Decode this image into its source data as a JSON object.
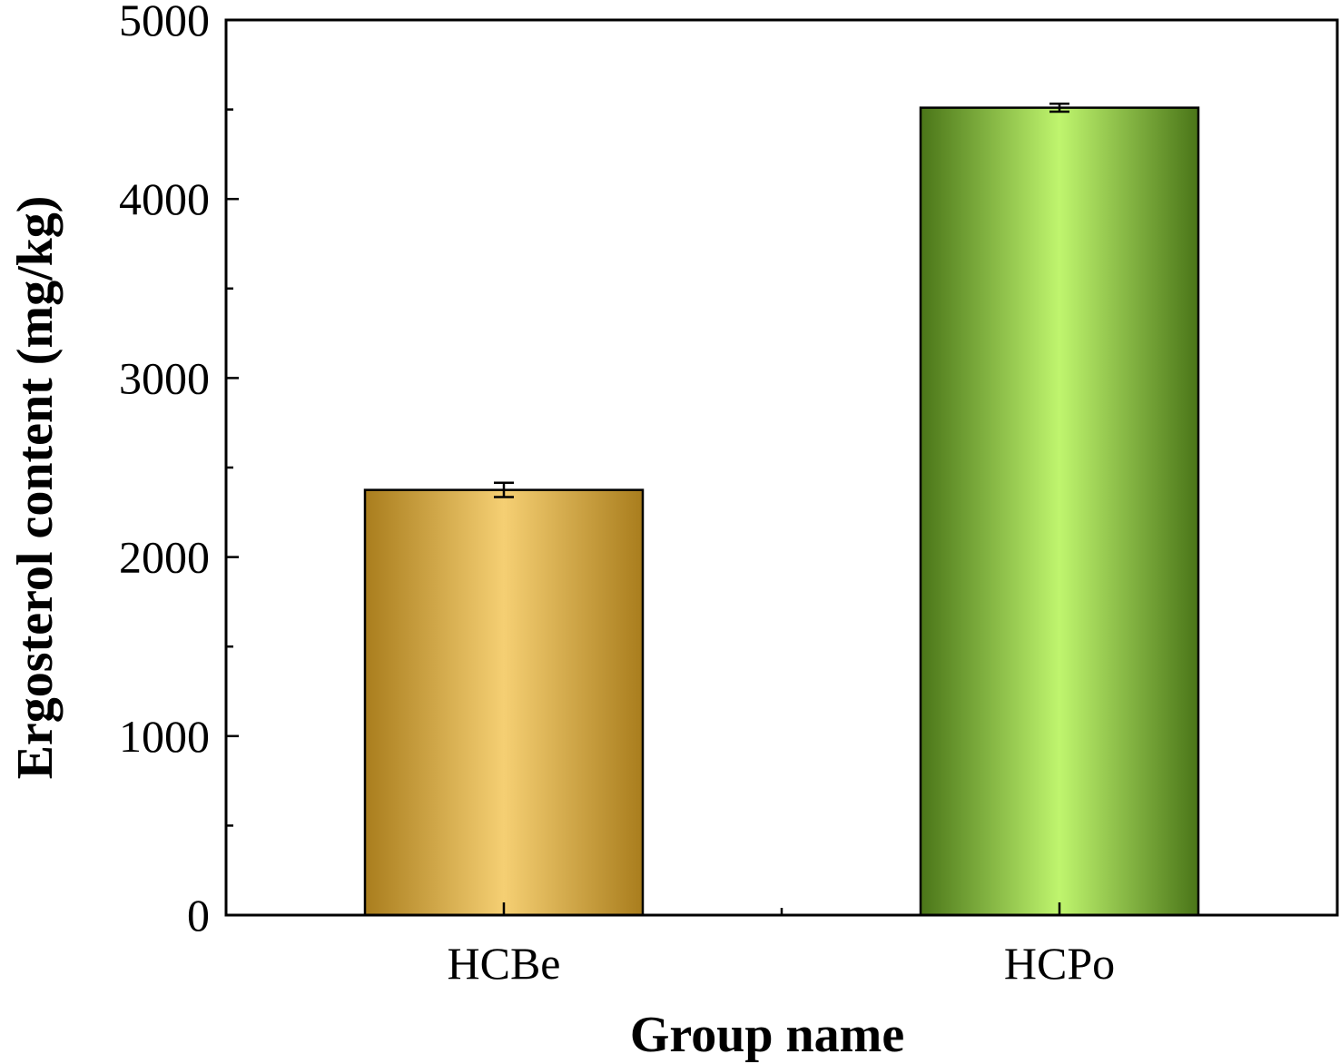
{
  "chart_data": {
    "type": "bar",
    "categories": [
      "HCBe",
      "HCPo"
    ],
    "values": [
      2375,
      4510
    ],
    "errors": [
      40,
      22
    ],
    "xlabel": "Group name",
    "ylabel": "Ergosterol content (mg/kg)",
    "ylim": [
      0,
      5000
    ],
    "yticks": [
      0,
      1000,
      2000,
      3000,
      4000,
      5000
    ],
    "ytick_labels": [
      "0",
      "1000",
      "2000",
      "3000",
      "4000",
      "5000"
    ],
    "grid": false,
    "bar_colors": [
      {
        "edge": "#a97d1d",
        "center": "#f5cf73"
      },
      {
        "edge": "#4a7518",
        "center": "#bff56e"
      }
    ]
  }
}
